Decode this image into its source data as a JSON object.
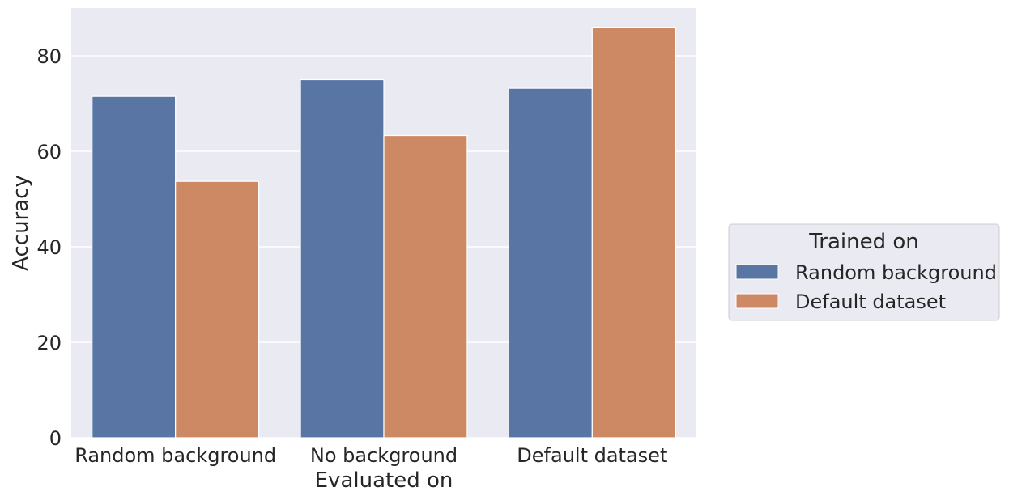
{
  "chart_data": {
    "type": "bar",
    "categories": [
      "Random background",
      "No background",
      "Default dataset"
    ],
    "series": [
      {
        "name": "Random background",
        "values": [
          71.5,
          75.0,
          73.2
        ],
        "color": "#5975a4"
      },
      {
        "name": "Default dataset",
        "values": [
          53.7,
          63.3,
          86.0
        ],
        "color": "#cc8963"
      }
    ],
    "title": "",
    "xlabel": "Evaluated on",
    "ylabel": "Accuracy",
    "ylim": [
      0,
      90
    ],
    "yticks": [
      0,
      20,
      40,
      60,
      80
    ],
    "grid": true,
    "legend": {
      "title": "Trained on",
      "placement": "outside-right"
    },
    "background_color": "#eaeaf2"
  }
}
